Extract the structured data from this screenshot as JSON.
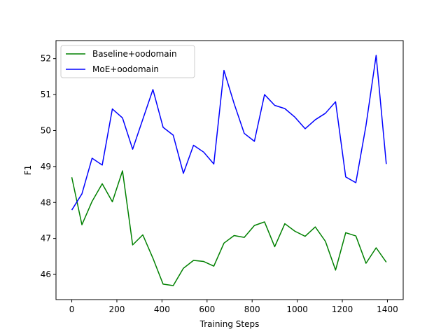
{
  "chart_data": {
    "type": "line",
    "title": "",
    "xlabel": "Training Steps",
    "ylabel": "F1",
    "xlim": [
      -70,
      1470
    ],
    "ylim": [
      45.3,
      52.5
    ],
    "x_ticks": [
      0,
      200,
      400,
      600,
      800,
      1000,
      1200,
      1400
    ],
    "y_ticks": [
      46,
      47,
      48,
      49,
      50,
      51,
      52
    ],
    "grid": false,
    "legend_position": "upper-left",
    "x": [
      0,
      45,
      90,
      135,
      180,
      225,
      270,
      315,
      360,
      405,
      450,
      495,
      540,
      585,
      630,
      675,
      720,
      765,
      810,
      855,
      900,
      945,
      990,
      1035,
      1080,
      1125,
      1170,
      1215,
      1260,
      1305,
      1350,
      1395
    ],
    "series": [
      {
        "name": "Baseline+oodomain",
        "color": "#008000",
        "values": [
          48.7,
          47.38,
          48.03,
          48.52,
          48.02,
          48.88,
          46.82,
          47.1,
          46.45,
          45.73,
          45.69,
          46.17,
          46.39,
          46.36,
          46.23,
          46.87,
          47.08,
          47.03,
          47.36,
          47.46,
          46.77,
          47.41,
          47.2,
          47.06,
          47.32,
          46.92,
          46.12,
          47.16,
          47.07,
          46.31,
          46.74,
          46.34
        ]
      },
      {
        "name": "MoE+oodomain",
        "color": "#0000ff",
        "values": [
          47.79,
          48.24,
          49.23,
          49.04,
          50.6,
          50.35,
          49.48,
          50.31,
          51.14,
          50.09,
          49.87,
          48.81,
          49.59,
          49.4,
          49.07,
          51.67,
          50.75,
          49.92,
          49.7,
          51.0,
          50.7,
          50.61,
          50.37,
          50.05,
          50.3,
          50.48,
          50.8,
          48.71,
          48.55,
          50.14,
          52.09,
          49.07
        ]
      }
    ]
  }
}
